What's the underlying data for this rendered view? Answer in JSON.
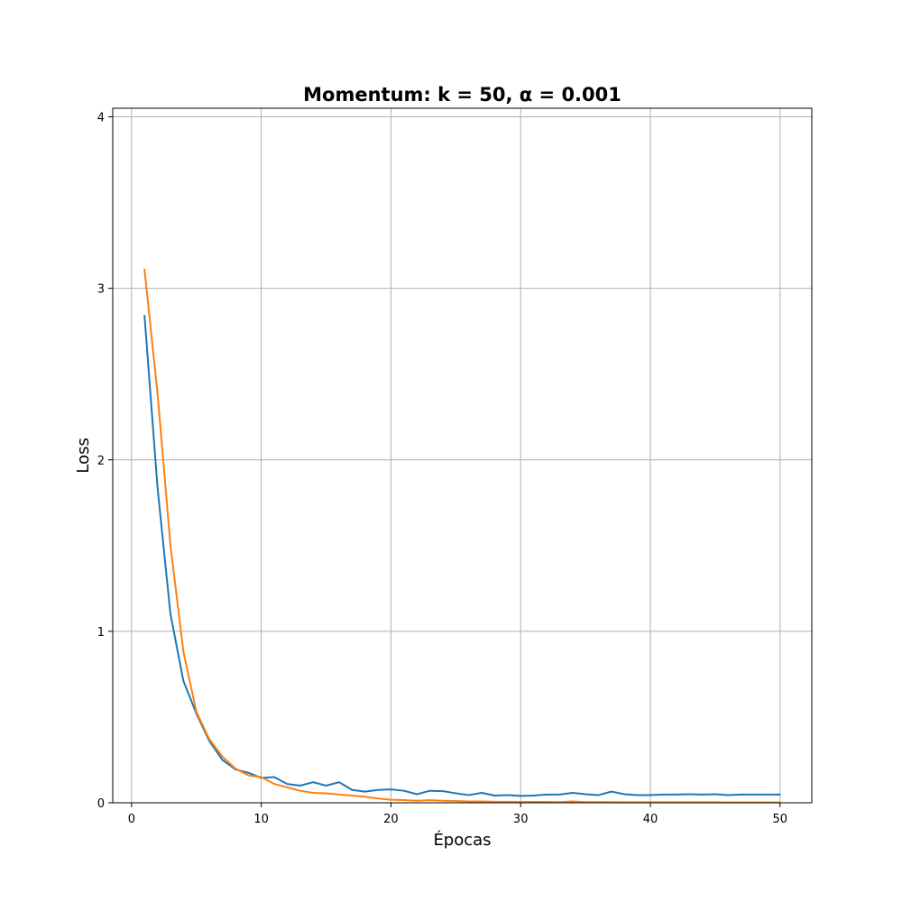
{
  "chart_data": {
    "type": "line",
    "title": "Momentum: k = 50, α = 0.001",
    "xlabel": "Épocas",
    "ylabel": "Loss",
    "xlim": [
      -1.45,
      52.45
    ],
    "ylim": [
      0,
      4.05
    ],
    "xticks": [
      0,
      10,
      20,
      30,
      40,
      50
    ],
    "yticks": [
      0,
      1,
      2,
      3,
      4
    ],
    "grid": true,
    "legend": "none",
    "x": [
      1,
      2,
      3,
      4,
      5,
      6,
      7,
      8,
      9,
      10,
      11,
      12,
      13,
      14,
      15,
      16,
      17,
      18,
      19,
      20,
      21,
      22,
      23,
      24,
      25,
      26,
      27,
      28,
      29,
      30,
      31,
      32,
      33,
      34,
      35,
      36,
      37,
      38,
      39,
      40,
      41,
      42,
      43,
      44,
      45,
      46,
      47,
      48,
      49,
      50
    ],
    "series": [
      {
        "color": "#1f77b4",
        "values": [
          2.84,
          1.84,
          1.1,
          0.71,
          0.52,
          0.36,
          0.25,
          0.195,
          0.175,
          0.145,
          0.15,
          0.11,
          0.1,
          0.12,
          0.1,
          0.12,
          0.075,
          0.065,
          0.075,
          0.078,
          0.07,
          0.05,
          0.07,
          0.068,
          0.055,
          0.045,
          0.058,
          0.042,
          0.045,
          0.04,
          0.042,
          0.048,
          0.048,
          0.058,
          0.05,
          0.045,
          0.065,
          0.05,
          0.045,
          0.045,
          0.048,
          0.048,
          0.05,
          0.048,
          0.05,
          0.045,
          0.048,
          0.048,
          0.048,
          0.048
        ]
      },
      {
        "color": "#ff7f0e",
        "values": [
          3.11,
          2.39,
          1.5,
          0.88,
          0.53,
          0.37,
          0.27,
          0.2,
          0.16,
          0.15,
          0.11,
          0.09,
          0.07,
          0.058,
          0.055,
          0.048,
          0.042,
          0.035,
          0.025,
          0.018,
          0.016,
          0.012,
          0.015,
          0.012,
          0.01,
          0.008,
          0.008,
          0.006,
          0.006,
          0.005,
          0.005,
          0.005,
          0.004,
          0.008,
          0.004,
          0.004,
          0.004,
          0.003,
          0.003,
          0.003,
          0.003,
          0.003,
          0.003,
          0.003,
          0.003,
          0.002,
          0.002,
          0.002,
          0.002,
          0.002
        ]
      }
    ]
  }
}
